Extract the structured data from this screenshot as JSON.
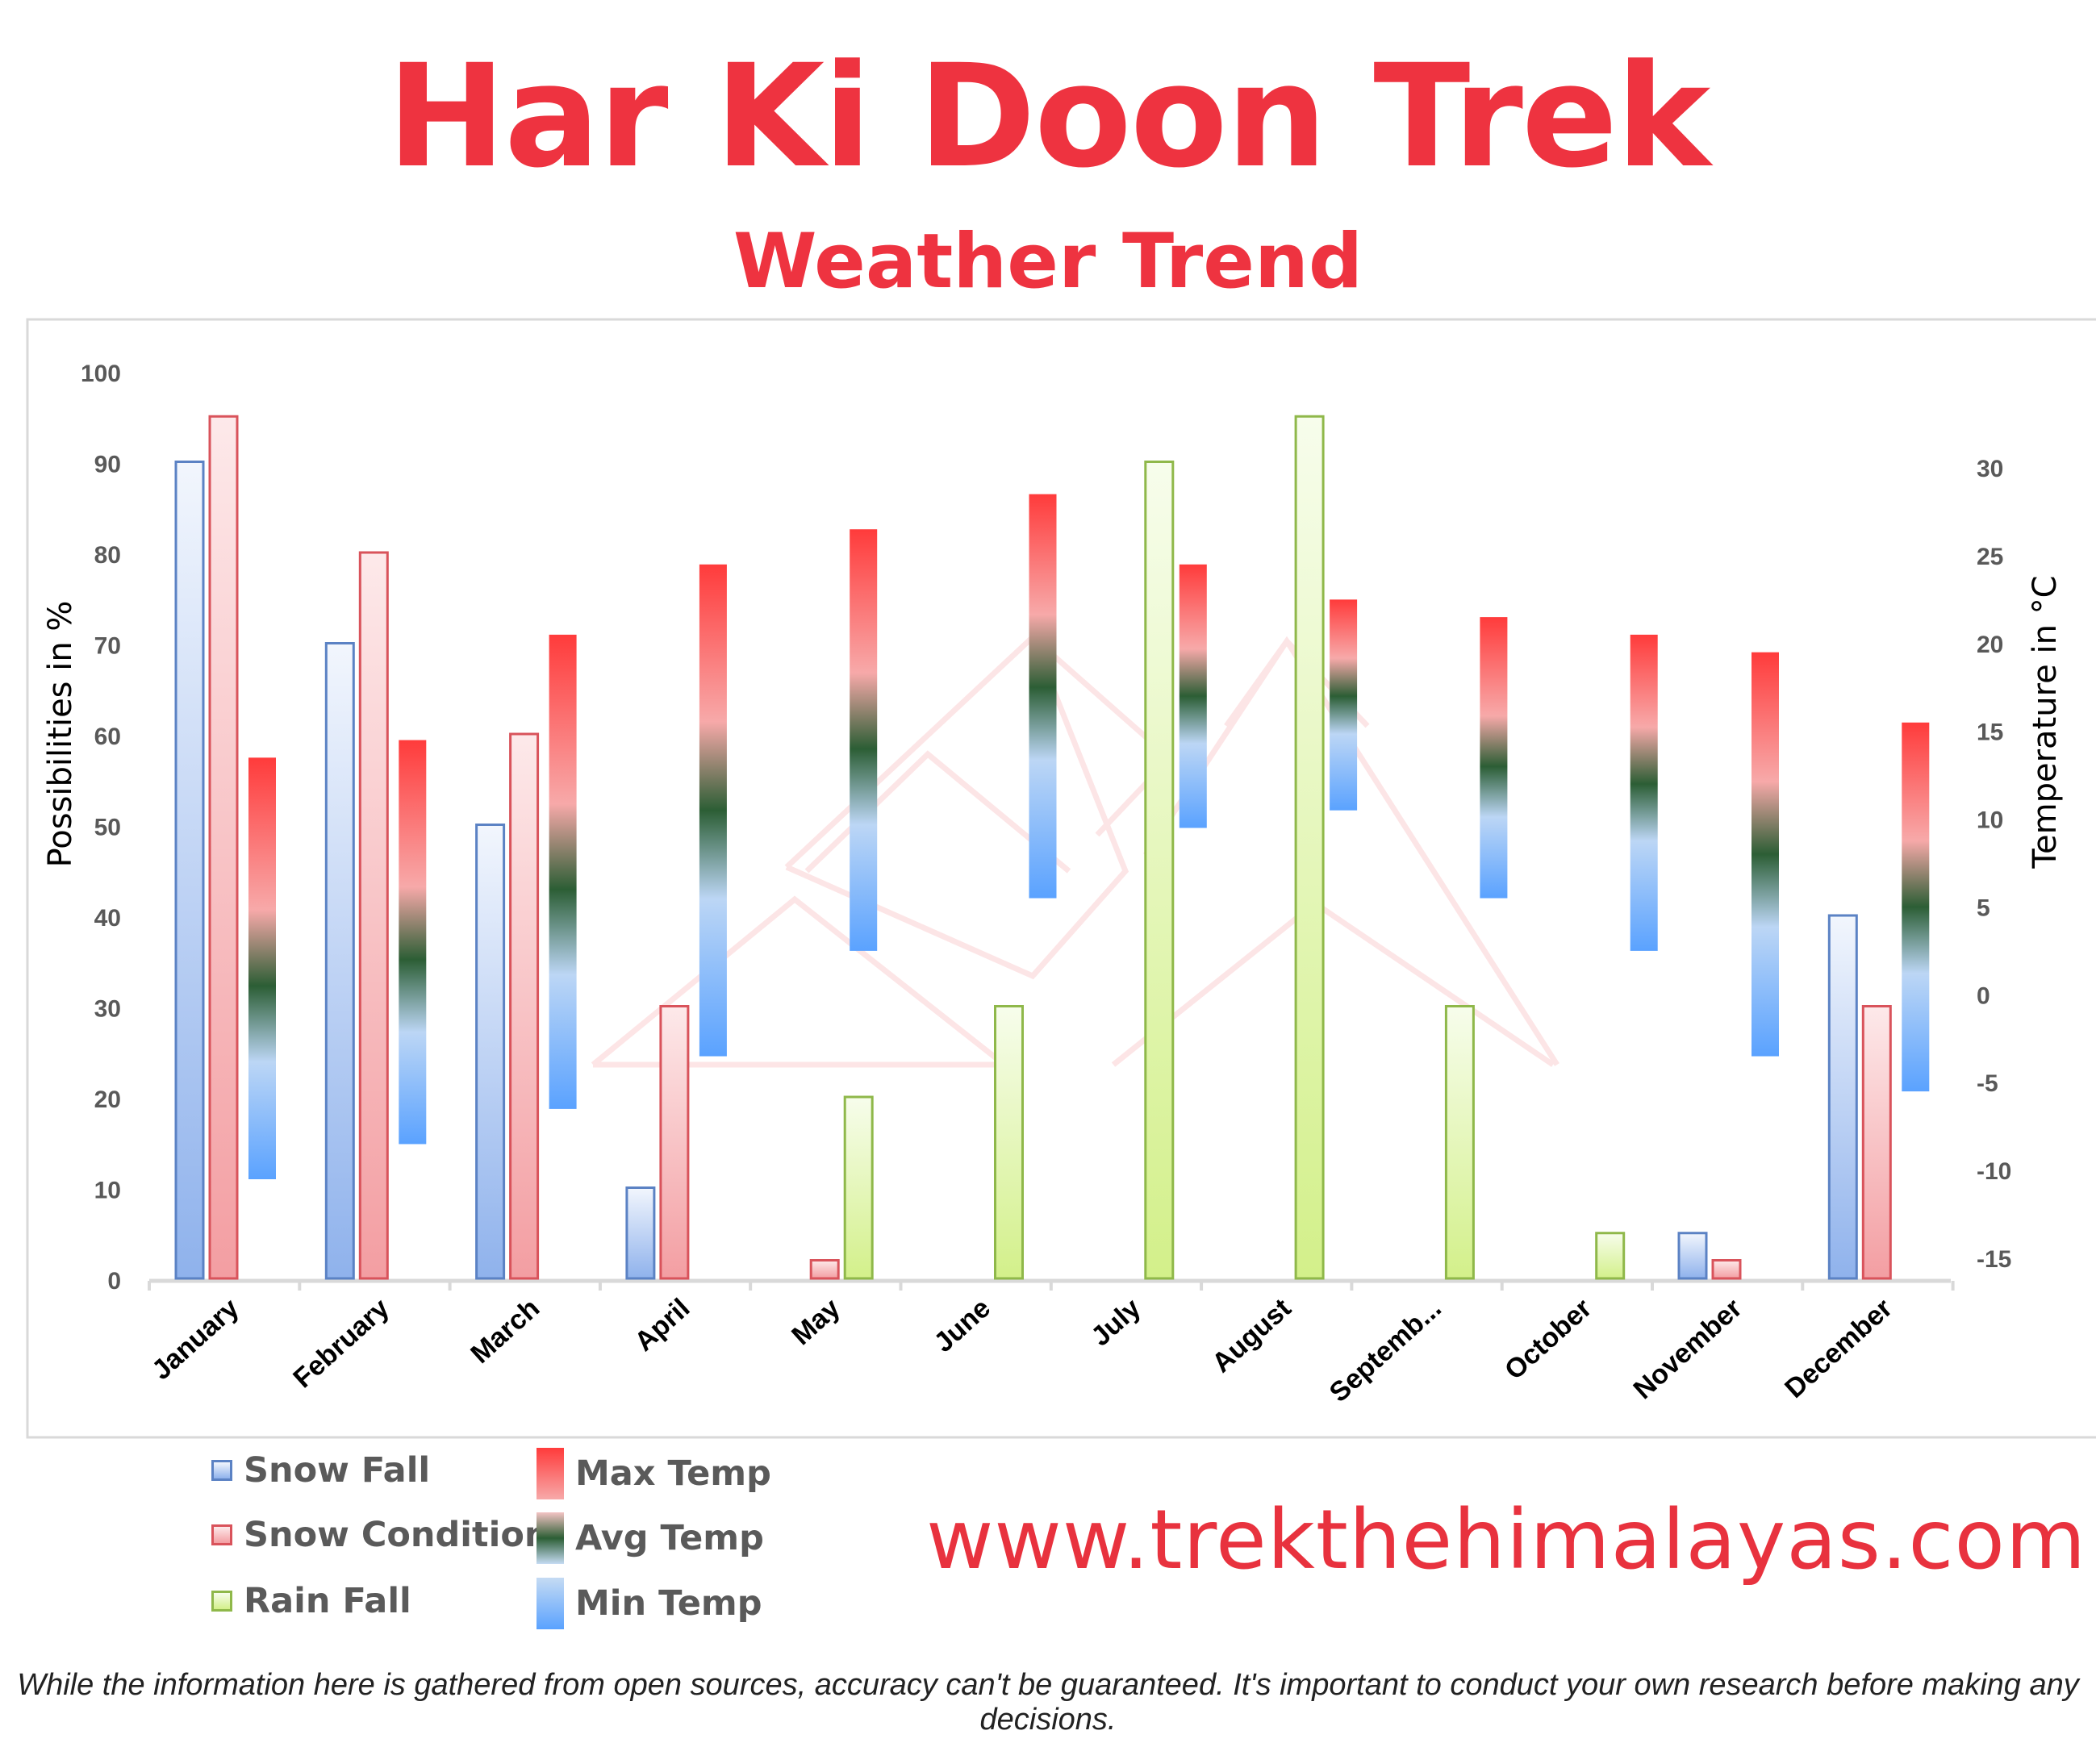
{
  "title": "Har Ki Doon Trek",
  "subtitle": "Weather Trend",
  "website": "www.trekthehimalayas.com",
  "disclaimer": "While the information here is gathered from open sources, accuracy can't be guaranteed. It's important to conduct your own research before making any decisions.",
  "legend": {
    "snow_fall": "Snow Fall",
    "snow_condition": "Snow Condition",
    "rain_fall": "Rain Fall",
    "max_temp": "Max Temp",
    "avg_temp": "Avg Temp",
    "min_temp": "Min Temp"
  },
  "colors": {
    "title": "#ee3340",
    "snow_fall_border": "#5b82c4",
    "snow_condition_border": "#d9535b",
    "rain_fall_border": "#8fb84a",
    "max_temp": "#ff3b3b",
    "avg_temp": "#2c5e35",
    "min_temp": "#5aa2ff"
  },
  "chart_data": {
    "type": "bar",
    "categories": [
      "January",
      "February",
      "March",
      "April",
      "May",
      "June",
      "July",
      "August",
      "Septemb...",
      "October",
      "November",
      "December"
    ],
    "ylabel": "Possibilities in %",
    "y2label": "Temperature in °C",
    "ylim": [
      0,
      100
    ],
    "y2lim": [
      -15,
      30
    ],
    "yticks": [
      "0",
      "10",
      "20",
      "30",
      "40",
      "50",
      "60",
      "70",
      "80",
      "90",
      "100"
    ],
    "y2ticks": [
      "-15",
      "-10",
      "-5",
      "0",
      "5",
      "10",
      "15",
      "20",
      "25",
      "30"
    ],
    "series": [
      {
        "name": "Snow Fall",
        "axis": "left",
        "values": [
          90,
          70,
          50,
          10,
          0,
          0,
          0,
          0,
          0,
          0,
          5,
          40
        ]
      },
      {
        "name": "Snow Condition",
        "axis": "left",
        "values": [
          95,
          80,
          60,
          30,
          2,
          0,
          0,
          0,
          0,
          0,
          2,
          30
        ]
      },
      {
        "name": "Rain Fall",
        "axis": "left",
        "values": [
          0,
          0,
          0,
          0,
          20,
          30,
          90,
          95,
          30,
          5,
          0,
          0
        ]
      }
    ],
    "temperature_range": {
      "axis": "right",
      "max_temp": [
        13.5,
        14.5,
        20.5,
        24.5,
        26.5,
        28.5,
        24.5,
        22.5,
        21.5,
        20.5,
        19.5,
        15.5
      ],
      "avg_temp": [
        0.5,
        2,
        6,
        10.5,
        14,
        17.5,
        17,
        17,
        13,
        12,
        8,
        5
      ],
      "min_temp": [
        -10.5,
        -8.5,
        -6.5,
        -3.5,
        2.5,
        5.5,
        9.5,
        10.5,
        5.5,
        2.5,
        -3.5,
        -5.5
      ]
    },
    "grid": false,
    "legend_position": "bottom-left"
  }
}
